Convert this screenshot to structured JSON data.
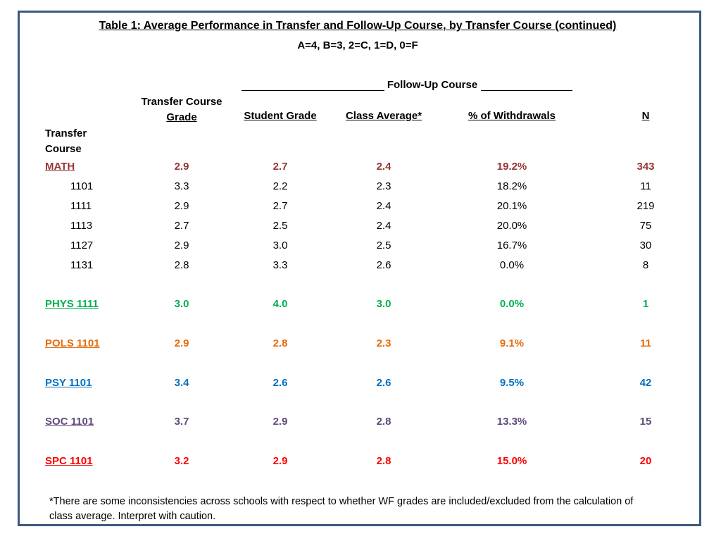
{
  "title": "Table 1: Average Performance in Transfer and Follow-Up Course, by Transfer Course (continued)",
  "grade_scale": "A=4, B=3, 2=C, 1=D, 0=F",
  "follow_up_label": "Follow-Up Course",
  "headers": {
    "transfer_grade_line1": "Transfer Course",
    "transfer_grade_line2": "Grade",
    "student_grade": "Student Grade",
    "class_average": "Class Average*",
    "withdrawals": "% of Withdrawals",
    "n": "N",
    "transfer_course_line1": "Transfer",
    "transfer_course_line2": "Course"
  },
  "rows": [
    {
      "course": "MATH",
      "tcg": "2.9",
      "sg": "2.7",
      "ca": "2.4",
      "wd": "19.2%",
      "n": "343",
      "color": "#953735",
      "group": true
    },
    {
      "course": "1101",
      "tcg": "3.3",
      "sg": "2.2",
      "ca": "2.3",
      "wd": "18.2%",
      "n": "11",
      "color": "#000000",
      "group": false
    },
    {
      "course": "1111",
      "tcg": "2.9",
      "sg": "2.7",
      "ca": "2.4",
      "wd": "20.1%",
      "n": "219",
      "color": "#000000",
      "group": false
    },
    {
      "course": "1113",
      "tcg": "2.7",
      "sg": "2.5",
      "ca": "2.4",
      "wd": "20.0%",
      "n": "75",
      "color": "#000000",
      "group": false
    },
    {
      "course": "1127",
      "tcg": "2.9",
      "sg": "3.0",
      "ca": "2.5",
      "wd": "16.7%",
      "n": "30",
      "color": "#000000",
      "group": false
    },
    {
      "course": "1131",
      "tcg": "2.8",
      "sg": "3.3",
      "ca": "2.6",
      "wd": "0.0%",
      "n": "8",
      "color": "#000000",
      "group": false
    },
    {
      "course": "PHYS 1111",
      "tcg": "3.0",
      "sg": "4.0",
      "ca": "3.0",
      "wd": "0.0%",
      "n": "1",
      "color": "#00b050",
      "group": true
    },
    {
      "course": "POLS 1101",
      "tcg": "2.9",
      "sg": "2.8",
      "ca": "2.3",
      "wd": "9.1%",
      "n": "11",
      "color": "#e46c0a",
      "group": true
    },
    {
      "course": "PSY 1101",
      "tcg": "3.4",
      "sg": "2.6",
      "ca": "2.6",
      "wd": "9.5%",
      "n": "42",
      "color": "#0070c0",
      "group": true
    },
    {
      "course": "SOC 1101",
      "tcg": "3.7",
      "sg": "2.9",
      "ca": "2.8",
      "wd": "13.3%",
      "n": "15",
      "color": "#604a7b",
      "group": true
    },
    {
      "course": "SPC 1101",
      "tcg": "3.2",
      "sg": "2.9",
      "ca": "2.8",
      "wd": "15.0%",
      "n": "20",
      "color": "#ff0000",
      "group": true
    }
  ],
  "footnote": "*There are some inconsistencies across schools with respect to whether WF grades are included/excluded from the calculation of class average. Interpret with caution."
}
